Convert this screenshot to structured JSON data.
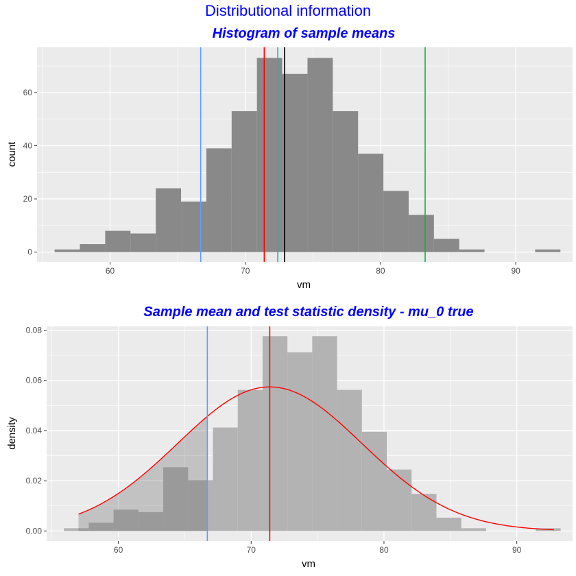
{
  "figure": {
    "title": "Distributional information"
  },
  "chart_data": [
    {
      "type": "bar",
      "title": "Histogram of sample means",
      "xlabel": "vm",
      "ylabel": "count",
      "xlim": [
        54.6,
        94.2
      ],
      "ylim": [
        -3.7,
        77
      ],
      "xticks": [
        60,
        70,
        80,
        90
      ],
      "yticks": [
        0,
        20,
        40,
        60
      ],
      "grid": true,
      "bin_width": 1.87,
      "bin_start": 55.9,
      "counts": [
        1,
        3,
        8,
        7,
        24,
        19,
        39,
        53,
        73,
        67,
        73,
        53,
        37,
        23,
        14,
        5,
        1,
        0,
        0,
        1
      ],
      "bar_color": "#898989",
      "vlines": [
        {
          "x": 66.7,
          "color": "#619cff"
        },
        {
          "x": 71.4,
          "color": "#ff0000"
        },
        {
          "x": 72.4,
          "color": "#00bfc4"
        },
        {
          "x": 72.9,
          "color": "#000000"
        },
        {
          "x": 83.3,
          "color": "#00ba38"
        }
      ]
    },
    {
      "type": "bar",
      "title": "Sample mean and test statistic density - mu_0 true",
      "xlabel": "vm",
      "ylabel": "density",
      "xlim": [
        54.6,
        94.2
      ],
      "ylim": [
        -0.004,
        0.0815
      ],
      "xticks": [
        60,
        70,
        80,
        90
      ],
      "yticks": [
        0,
        0.02,
        0.04,
        0.06,
        0.08
      ],
      "ytick_labels": [
        "0.00",
        "0.02",
        "0.04",
        "0.06",
        "0.08"
      ],
      "grid": true,
      "bin_width": 1.87,
      "bin_start": 55.9,
      "densities": [
        0.0011,
        0.0033,
        0.0085,
        0.0075,
        0.0254,
        0.0202,
        0.0412,
        0.0562,
        0.0776,
        0.0712,
        0.0776,
        0.0562,
        0.0395,
        0.0245,
        0.0148,
        0.0053,
        0.0011,
        0,
        0,
        0.0011
      ],
      "bar_color": "#b3b3b3",
      "shaded_region": {
        "x_from": 57.0,
        "x_to": 66.7,
        "color": "#595959"
      },
      "density_curve": {
        "mean": 71.4,
        "sd": 6.95,
        "x_from": 57.0,
        "x_to": 92.8,
        "color": "#ff0000"
      },
      "vlines": [
        {
          "x": 66.7,
          "color": "#619cff"
        },
        {
          "x": 71.4,
          "color": "#ff0000"
        }
      ]
    }
  ]
}
